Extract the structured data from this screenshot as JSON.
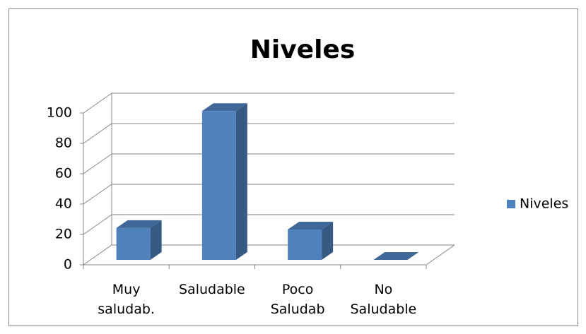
{
  "chart_data": {
    "type": "bar3d",
    "title": "Niveles",
    "categories": [
      "Muy saludab.",
      "Saludable",
      "Poco Saludab",
      "No Saludable"
    ],
    "series": [
      {
        "name": "Niveles",
        "color": "#4f81bd",
        "values": [
          21,
          98,
          20,
          0
        ]
      }
    ],
    "ylim": [
      0,
      100
    ],
    "yticks": [
      0,
      20,
      40,
      60,
      80,
      100
    ],
    "grid": true,
    "legend": "right"
  }
}
